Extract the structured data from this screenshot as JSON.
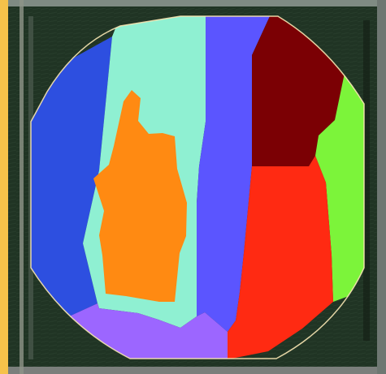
{
  "map": {
    "type": "aerial-field-segmentation",
    "background_color": "#f6c24a",
    "imagery_base_color": "#203424",
    "field_boundary_color": "#f7e6b3",
    "zones": [
      {
        "name": "zone-blue-left",
        "color": "#2d4fe0"
      },
      {
        "name": "zone-aqua",
        "color": "#8ff0d2"
      },
      {
        "name": "zone-orange",
        "color": "#ff8a12"
      },
      {
        "name": "zone-purple-blue",
        "color": "#5b55ff"
      },
      {
        "name": "zone-dark-red",
        "color": "#7b0004"
      },
      {
        "name": "zone-green",
        "color": "#7cf43a"
      },
      {
        "name": "zone-red",
        "color": "#ff2a12"
      },
      {
        "name": "zone-lavender",
        "color": "#9c66ff"
      }
    ]
  }
}
